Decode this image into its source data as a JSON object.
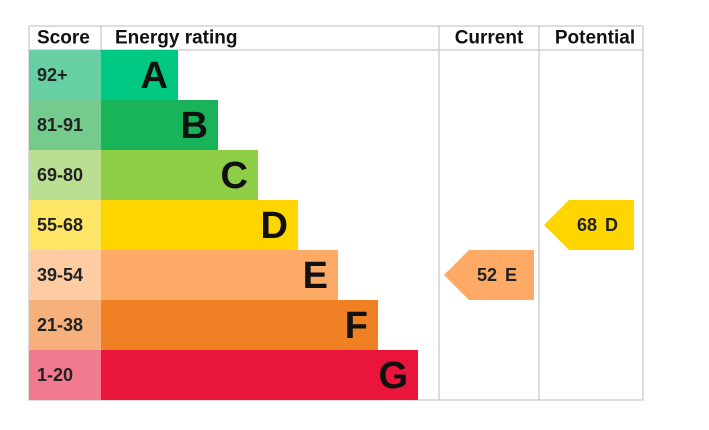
{
  "headers": {
    "score": "Score",
    "rating": "Energy rating",
    "current": "Current",
    "potential": "Potential"
  },
  "bands": [
    {
      "score": "92+",
      "letter": "A",
      "color": "#00c781",
      "score_color": "#66cfa4"
    },
    {
      "score": "81-91",
      "letter": "B",
      "color": "#19b459",
      "score_color": "#75cb8e"
    },
    {
      "score": "69-80",
      "letter": "C",
      "color": "#8dce46",
      "score_color": "#badf93"
    },
    {
      "score": "55-68",
      "letter": "D",
      "color": "#ffd500",
      "score_color": "#ffe566"
    },
    {
      "score": "39-54",
      "letter": "E",
      "color": "#fcaa65",
      "score_color": "#fdcca3"
    },
    {
      "score": "21-38",
      "letter": "F",
      "color": "#ef8023",
      "score_color": "#f5b07b"
    },
    {
      "score": "1-20",
      "letter": "G",
      "color": "#e9153b",
      "score_color": "#f27a8e"
    }
  ],
  "current": {
    "score": 52,
    "letter": "E"
  },
  "potential": {
    "score": 68,
    "letter": "D"
  }
}
